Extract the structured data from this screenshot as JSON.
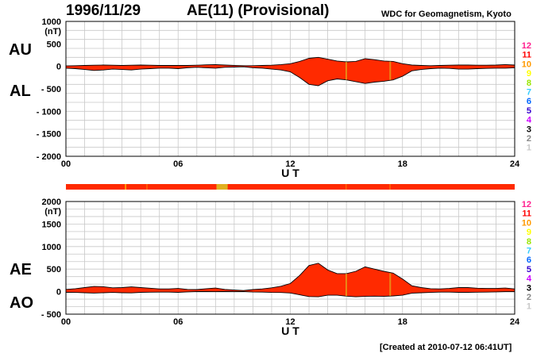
{
  "header": {
    "date": "1996/11/29",
    "title": "AE(11) (Provisional)",
    "credit": "WDC for Geomagnetism, Kyoto"
  },
  "footer": {
    "created": "[Created at 2010-07-12 06:41UT]"
  },
  "colors": {
    "fill": "#ff2a00",
    "yellow_marker": "#e0b020",
    "station_count": {
      "12": "#ff1f8f",
      "11": "#ff0000",
      "10": "#ff9900",
      "9": "#ffff00",
      "8": "#99e600",
      "7": "#33ccff",
      "6": "#0066ff",
      "5": "#3300cc",
      "4": "#cc00ff",
      "3": "#000000",
      "2": "#888888",
      "1": "#c8c8c8"
    }
  },
  "station_scale": [
    "12",
    "11",
    "10",
    "9",
    "8",
    "7",
    "6",
    "5",
    "4",
    "3",
    "2",
    "1"
  ],
  "coverage_bar": {
    "base_color": "#ff2a00",
    "marks": [
      {
        "t": 3.15,
        "w": 0.08,
        "color": "#ff9900"
      },
      {
        "t": 8.05,
        "w": 0.6,
        "color": "#e0b020"
      },
      {
        "t": 4.3,
        "w": 0.05,
        "color": "#ff6600"
      },
      {
        "t": 14.95,
        "w": 0.05,
        "color": "#ff6600"
      },
      {
        "t": 17.3,
        "w": 0.06,
        "color": "#ff6600"
      }
    ]
  },
  "chart_data": [
    {
      "type": "area",
      "panel": "AU/AL",
      "side_labels": [
        "AU",
        "AL"
      ],
      "ylabel": "(nT)",
      "ylim": [
        -2000,
        1000
      ],
      "yticks": [
        "1000",
        "500",
        "0",
        "- 500",
        "- 1000",
        "- 1500",
        "- 2000"
      ],
      "ytick_values": [
        1000,
        500,
        0,
        -500,
        -1000,
        -1500,
        -2000
      ],
      "xlabel": "U T",
      "xlim": [
        0,
        24
      ],
      "xticks": [
        "00",
        "06",
        "12",
        "18",
        "24"
      ],
      "xtick_values": [
        0,
        6,
        12,
        18,
        24
      ],
      "x_hours": [
        0,
        0.5,
        1,
        1.5,
        2,
        2.5,
        3,
        3.5,
        4,
        4.5,
        5,
        5.5,
        6,
        6.5,
        7,
        7.5,
        8,
        8.5,
        9,
        9.5,
        10,
        10.5,
        11,
        11.5,
        12,
        12.5,
        13,
        13.5,
        14,
        14.5,
        15,
        15.5,
        16,
        16.5,
        17,
        17.5,
        18,
        18.5,
        19,
        19.5,
        20,
        20.5,
        21,
        21.5,
        22,
        22.5,
        23,
        23.5,
        24
      ],
      "series": [
        {
          "values": [
            10,
            15,
            20,
            25,
            30,
            25,
            20,
            25,
            30,
            25,
            20,
            20,
            20,
            20,
            25,
            35,
            40,
            30,
            20,
            15,
            15,
            20,
            25,
            40,
            60,
            110,
            180,
            200,
            160,
            120,
            100,
            110,
            170,
            150,
            120,
            110,
            60,
            30,
            20,
            15,
            20,
            25,
            30,
            30,
            25,
            25,
            30,
            40,
            30
          ]
        },
        {
          "values": [
            -40,
            -50,
            -70,
            -90,
            -80,
            -60,
            -70,
            -80,
            -60,
            -50,
            -40,
            -40,
            -50,
            -30,
            -20,
            -30,
            -40,
            -20,
            -15,
            -10,
            -30,
            -40,
            -60,
            -80,
            -120,
            -250,
            -400,
            -430,
            -320,
            -280,
            -300,
            -340,
            -380,
            -350,
            -330,
            -300,
            -220,
            -100,
            -70,
            -50,
            -40,
            -45,
            -60,
            -60,
            -50,
            -45,
            -40,
            -40,
            -30
          ]
        }
      ]
    },
    {
      "type": "area",
      "panel": "AE/AO",
      "side_labels": [
        "AE",
        "AO"
      ],
      "ylabel": "(nT)",
      "ylim": [
        -500,
        2000
      ],
      "yticks": [
        "2000",
        "1500",
        "1000",
        "500",
        "0",
        "- 500"
      ],
      "ytick_values": [
        2000,
        1500,
        1000,
        500,
        0,
        -500
      ],
      "xlabel": "U T",
      "xlim": [
        0,
        24
      ],
      "xticks": [
        "00",
        "06",
        "12",
        "18",
        "24"
      ],
      "xtick_values": [
        0,
        6,
        12,
        18,
        24
      ],
      "x_hours": [
        0,
        0.5,
        1,
        1.5,
        2,
        2.5,
        3,
        3.5,
        4,
        4.5,
        5,
        5.5,
        6,
        6.5,
        7,
        7.5,
        8,
        8.5,
        9,
        9.5,
        10,
        10.5,
        11,
        11.5,
        12,
        12.5,
        13,
        13.5,
        14,
        14.5,
        15,
        15.5,
        16,
        16.5,
        17,
        17.5,
        18,
        18.5,
        19,
        19.5,
        20,
        20.5,
        21,
        21.5,
        22,
        22.5,
        23,
        23.5,
        24
      ],
      "series": [
        {
          "values": [
            50,
            65,
            90,
            115,
            110,
            85,
            90,
            105,
            90,
            75,
            60,
            60,
            70,
            50,
            45,
            65,
            80,
            50,
            35,
            25,
            45,
            60,
            85,
            120,
            180,
            360,
            580,
            630,
            480,
            400,
            400,
            450,
            550,
            500,
            450,
            410,
            280,
            130,
            90,
            65,
            60,
            70,
            90,
            90,
            75,
            70,
            70,
            80,
            60
          ]
        },
        {
          "values": [
            -15,
            -18,
            -25,
            -32,
            -25,
            -18,
            -25,
            -28,
            -15,
            -13,
            -10,
            -10,
            -15,
            -5,
            3,
            3,
            0,
            5,
            3,
            3,
            -8,
            -10,
            -18,
            -20,
            -30,
            -70,
            -110,
            -115,
            -80,
            -80,
            -100,
            -115,
            -105,
            -100,
            -105,
            -95,
            -80,
            -35,
            -25,
            -18,
            -10,
            -10,
            -15,
            -15,
            -13,
            -10,
            -5,
            0,
            0
          ]
        }
      ]
    }
  ]
}
